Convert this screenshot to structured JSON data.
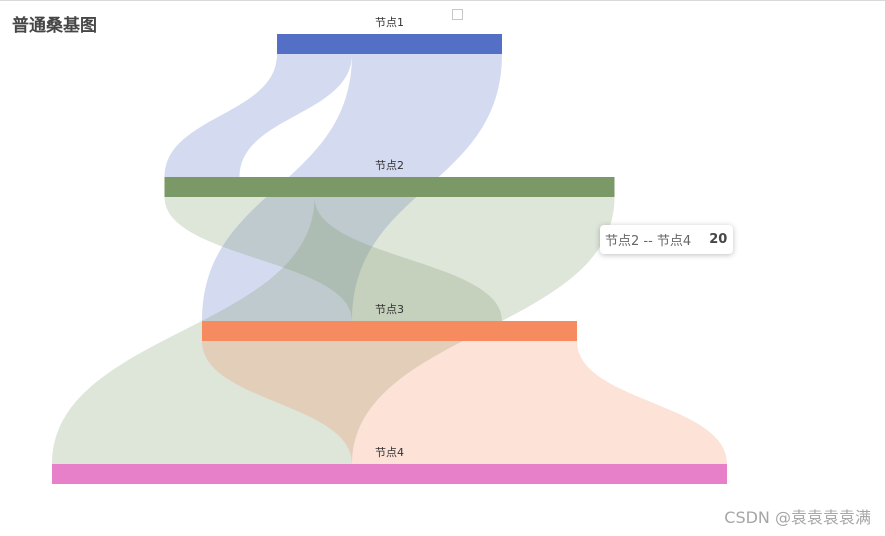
{
  "page": {
    "title": "普通桑基图",
    "watermark": "CSDN @袁袁袁袁满"
  },
  "tooltip": {
    "label": "节点2 -- 节点4",
    "value": "20"
  },
  "chart_data": {
    "type": "sankey",
    "title": "普通桑基图",
    "nodes": [
      {
        "name": "节点1",
        "color": "#5470c6"
      },
      {
        "name": "节点2",
        "color": "#7a9966"
      },
      {
        "name": "节点3",
        "color": "#f58b5f"
      },
      {
        "name": "节点4",
        "color": "#e87fc9"
      }
    ],
    "links": [
      {
        "source": "节点1",
        "target": "节点2",
        "value": 5
      },
      {
        "source": "节点1",
        "target": "节点3",
        "value": 10
      },
      {
        "source": "节点2",
        "target": "节点3",
        "value": 10
      },
      {
        "source": "节点2",
        "target": "节点4",
        "value": 20
      },
      {
        "source": "节点3",
        "target": "节点4",
        "value": 25
      }
    ],
    "link_opacity": 0.25,
    "orient": "vertical"
  }
}
